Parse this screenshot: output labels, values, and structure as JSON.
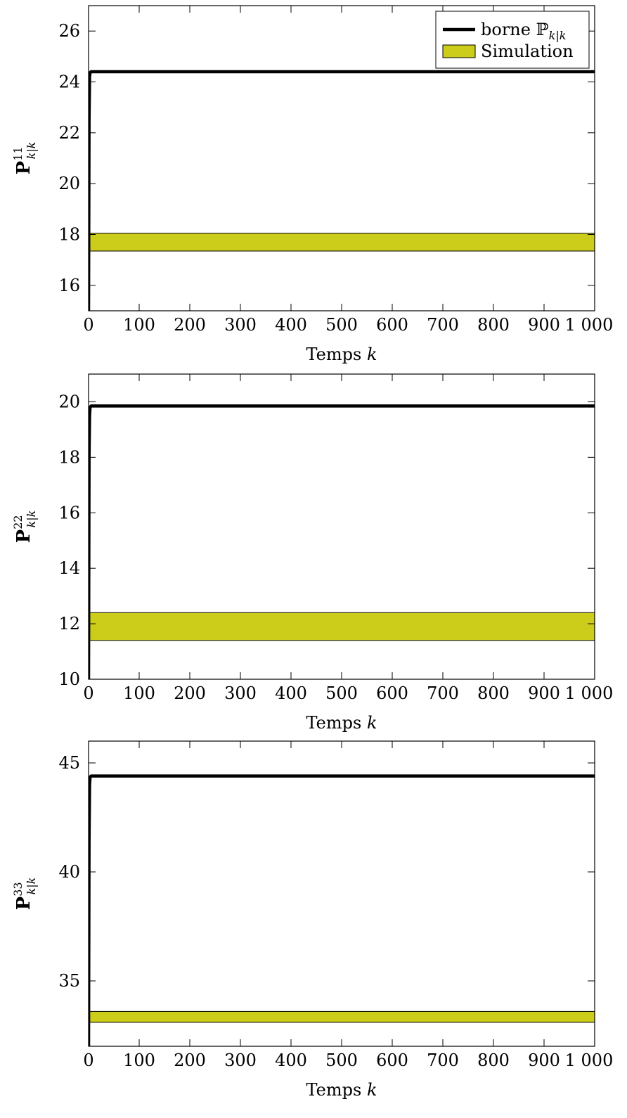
{
  "chart_data": [
    {
      "type": "line",
      "ylabel": {
        "main": "P",
        "sup": "11",
        "sub": "k|k"
      },
      "xlabel": {
        "text": "Temps",
        "var": "k"
      },
      "xlim": [
        0,
        1000
      ],
      "ylim": [
        15,
        27
      ],
      "xticks": [
        0,
        100,
        200,
        300,
        400,
        500,
        600,
        700,
        800,
        900,
        1000
      ],
      "xtick_labels": [
        "0",
        "100",
        "200",
        "300",
        "400",
        "500",
        "600",
        "700",
        "800",
        "900",
        "1 000"
      ],
      "yticks": [
        16,
        18,
        20,
        22,
        24,
        26
      ],
      "ytick_labels": [
        "16",
        "18",
        "20",
        "22",
        "24",
        "26"
      ],
      "bound": {
        "x": [
          0,
          1,
          2,
          3,
          5,
          1000
        ],
        "y": [
          15,
          22.5,
          24.2,
          24.37,
          24.4,
          24.4
        ]
      },
      "band": {
        "x": [
          0,
          1000
        ],
        "lower": 17.35,
        "upper": 18.05
      },
      "legend": {
        "position": "top-right",
        "entries": [
          {
            "kind": "line",
            "text": "borne ",
            "math": "ℙ",
            "sub": "k|k"
          },
          {
            "kind": "band",
            "text": "Simulation"
          }
        ]
      }
    },
    {
      "type": "line",
      "ylabel": {
        "main": "P",
        "sup": "22",
        "sub": "k|k"
      },
      "xlabel": {
        "text": "Temps",
        "var": "k"
      },
      "xlim": [
        0,
        1000
      ],
      "ylim": [
        10,
        21
      ],
      "xticks": [
        0,
        100,
        200,
        300,
        400,
        500,
        600,
        700,
        800,
        900,
        1000
      ],
      "xtick_labels": [
        "0",
        "100",
        "200",
        "300",
        "400",
        "500",
        "600",
        "700",
        "800",
        "900",
        "1 000"
      ],
      "yticks": [
        10,
        12,
        14,
        16,
        18,
        20
      ],
      "ytick_labels": [
        "10",
        "12",
        "14",
        "16",
        "18",
        "20"
      ],
      "bound": {
        "x": [
          0,
          1,
          2,
          3,
          5,
          1000
        ],
        "y": [
          10,
          18.0,
          19.5,
          19.8,
          19.85,
          19.85
        ]
      },
      "band": {
        "x": [
          0,
          1000
        ],
        "lower": 11.4,
        "upper": 12.4
      }
    },
    {
      "type": "line",
      "ylabel": {
        "main": "P",
        "sup": "33",
        "sub": "k|k"
      },
      "xlabel": {
        "text": "Temps",
        "var": "k"
      },
      "xlim": [
        0,
        1000
      ],
      "ylim": [
        32,
        46
      ],
      "xticks": [
        0,
        100,
        200,
        300,
        400,
        500,
        600,
        700,
        800,
        900,
        1000
      ],
      "xtick_labels": [
        "0",
        "100",
        "200",
        "300",
        "400",
        "500",
        "600",
        "700",
        "800",
        "900",
        "1 000"
      ],
      "yticks": [
        35,
        40,
        45
      ],
      "ytick_labels": [
        "35",
        "40",
        "45"
      ],
      "bound": {
        "x": [
          0,
          1,
          2,
          3,
          5,
          1000
        ],
        "y": [
          32,
          41.5,
          44.0,
          44.35,
          44.4,
          44.4
        ]
      },
      "band": {
        "x": [
          0,
          1000
        ],
        "lower": 33.1,
        "upper": 33.6
      }
    }
  ],
  "style": {
    "bound_color": "#000000",
    "band_fill": "#cccc1a",
    "band_stroke": "#000000",
    "axis_color": "#000000"
  }
}
